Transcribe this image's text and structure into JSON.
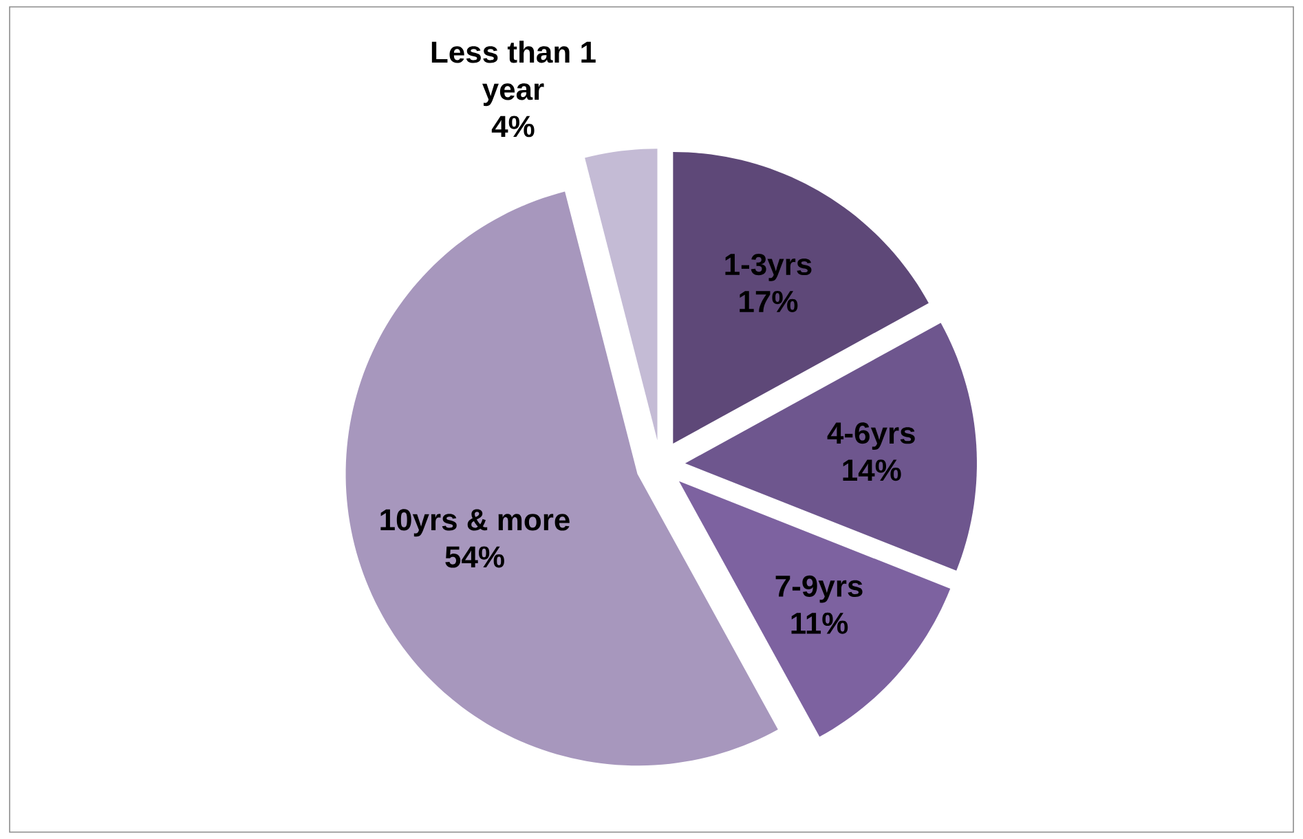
{
  "chart_data": {
    "type": "pie",
    "categories": [
      "1-3yrs",
      "4-6yrs",
      "7-9yrs",
      "10yrs & more",
      "Less than 1 year"
    ],
    "values": [
      17,
      14,
      11,
      54,
      4
    ],
    "colors": [
      "#5e4878",
      "#6e568e",
      "#7d62a0",
      "#a797bd",
      "#c4bbd5"
    ],
    "value_labels": [
      "17%",
      "14%",
      "11%",
      "54%",
      "4%"
    ]
  }
}
